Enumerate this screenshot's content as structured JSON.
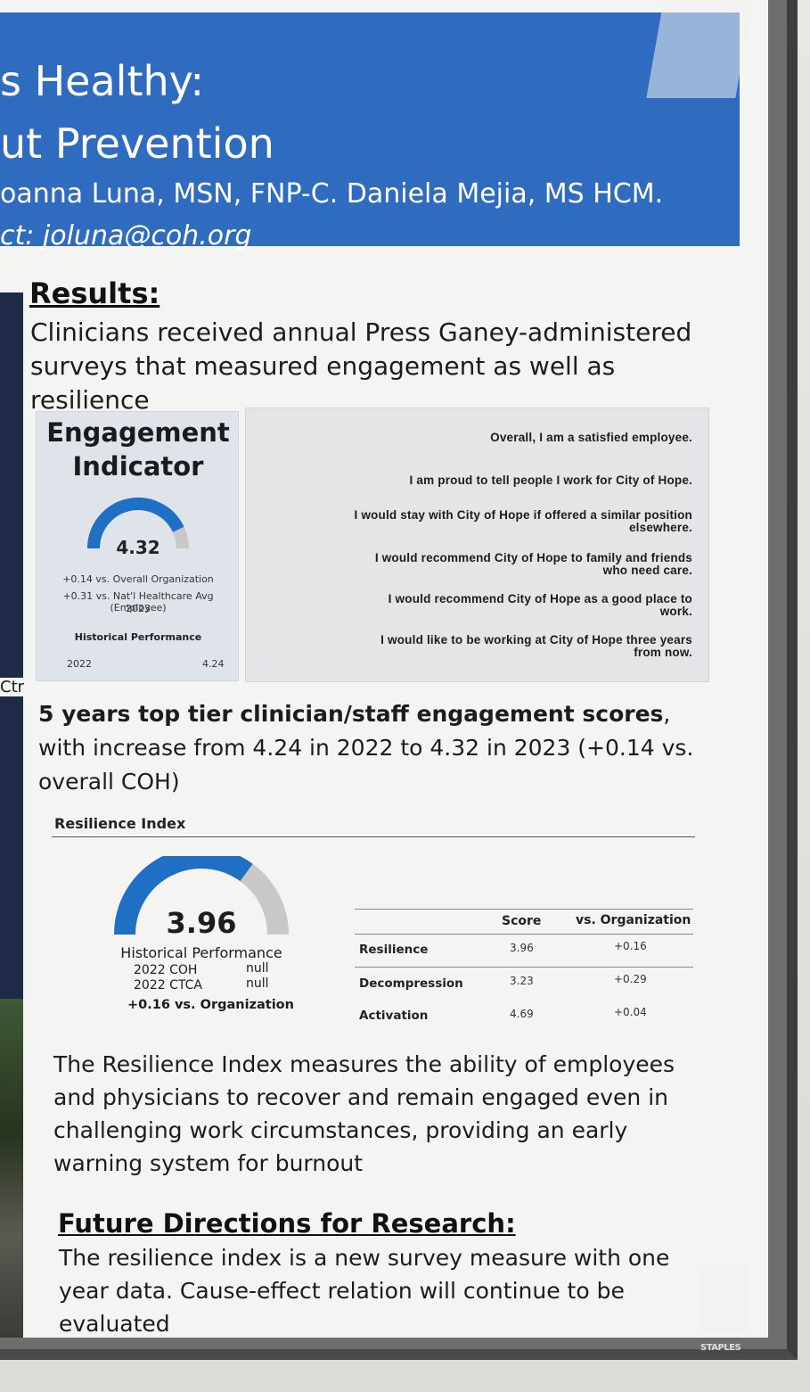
{
  "header": {
    "title_line1": "s Healthy:",
    "title_line2": "ut Prevention",
    "authors": "oanna Luna, MSN, FNP-C. Daniela Mejia, MS HCM.",
    "contact": "ct: joluna@coh.org"
  },
  "left_panel": {
    "ctr_label": "Ctr"
  },
  "results": {
    "heading": "Results:",
    "intro": "Clinicians received annual Press Ganey-administered surveys that measured engagement as well as resilience"
  },
  "engagement": {
    "title": "Engagement Indicator",
    "value": "4.32",
    "gauge_fraction": 0.86,
    "vs_org": "+0.14 vs. Overall Organization",
    "vs_natl": "+0.31 vs. Nat'l Healthcare Avg (Employee)",
    "year": "2023",
    "historical_label": "Historical Performance",
    "hist_year": "2022",
    "hist_value": "4.24",
    "colors": {
      "gauge": "#1f6fc4",
      "gauge_track": "#c8c8c8"
    }
  },
  "questions": [
    {
      "line1": "Overall, I am a satisfied employee.",
      "line2": ""
    },
    {
      "line1": "I am proud to tell people I work for City of Hope.",
      "line2": ""
    },
    {
      "line1": "I would stay with City of Hope if offered a similar position",
      "line2": "elsewhere."
    },
    {
      "line1": "I would recommend City of Hope to family and friends",
      "line2": "who need care."
    },
    {
      "line1": "I would recommend City of Hope as a good place to",
      "line2": "work."
    },
    {
      "line1": "I would like to be working at City of Hope three years",
      "line2": "from now."
    }
  ],
  "summary": {
    "bold": "5 years top tier clinician/staff engagement scores",
    "rest": ", with increase from 4.24 in 2022 to 4.32 in 2023 (+0.14 vs. overall COH)"
  },
  "resilience": {
    "title": "Resilience Index",
    "value": "3.96",
    "gauge_fraction": 0.7,
    "historical_label": "Historical Performance",
    "row1_label": "2022 COH",
    "row1_value": "null",
    "row2_label": "2022 CTCA",
    "row2_value": "null",
    "vs_org": "+0.16 vs. Organization",
    "table": {
      "col_score": "Score",
      "col_vs": "vs. Organization",
      "rows": [
        {
          "label": "Resilience",
          "score": "3.96",
          "vs": "+0.16"
        },
        {
          "label": "Decompression",
          "score": "3.23",
          "vs": "+0.29"
        },
        {
          "label": "Activation",
          "score": "4.69",
          "vs": "+0.04"
        }
      ]
    },
    "colors": {
      "gauge": "#1f6fc4",
      "gauge_track": "#c8c8c8"
    }
  },
  "resilience_text": "The Resilience Index measures the ability of employees and physicians to recover and remain engaged even in challenging work circumstances, providing an early warning system for burnout",
  "future": {
    "heading": "Future Directions for Research:",
    "text": "The resilience index is a new survey measure with one year data. Cause-effect relation will continue to be evaluated"
  },
  "frame_brand": "STAPLES"
}
